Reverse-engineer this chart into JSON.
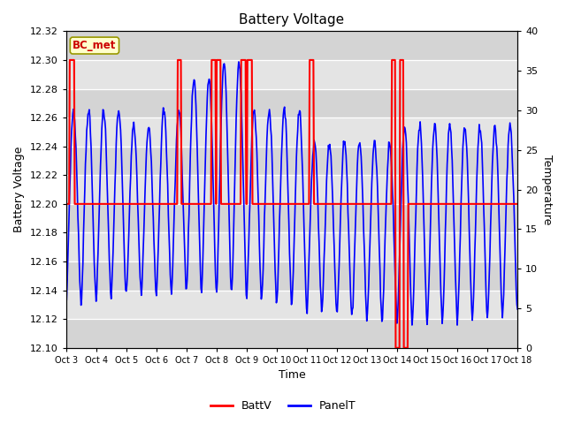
{
  "title": "Battery Voltage",
  "xlabel": "Time",
  "ylabel_left": "Battery Voltage",
  "ylabel_right": "Temperature",
  "ylim_left": [
    12.1,
    12.32
  ],
  "ylim_right": [
    0,
    40
  ],
  "yticks_left": [
    12.1,
    12.12,
    12.14,
    12.16,
    12.18,
    12.2,
    12.22,
    12.24,
    12.26,
    12.28,
    12.3,
    12.32
  ],
  "yticks_right": [
    0,
    5,
    10,
    15,
    20,
    25,
    30,
    35,
    40
  ],
  "background_color": "#e0e0e0",
  "band_color_dark": "#cccccc",
  "band_color_light": "#e8e8e8",
  "legend_label_batt": "BattV",
  "legend_label_panel": "PanelT",
  "annotation_text": "BC_met",
  "annotation_color": "#cc0000",
  "annotation_bg": "#ffffcc",
  "annotation_edge": "#999900",
  "grid_color": "white",
  "batt_color": "red",
  "panel_color": "blue",
  "title_fontsize": 11,
  "axis_fontsize": 9,
  "tick_fontsize": 8,
  "xtick_labels": [
    "Oct 3",
    "Oct 4",
    "Oct 5",
    "Oct 6",
    "Oct 7",
    "Oct 8",
    "Oct 9",
    "Oct 10",
    "Oct 11",
    "Oct 12",
    "Oct 13",
    "Oct 14",
    "Oct 15",
    "Oct 16",
    "Oct 17",
    "Oct 18"
  ]
}
